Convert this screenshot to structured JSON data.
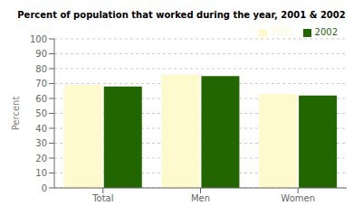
{
  "chart_data": {
    "type": "bar",
    "title": "Percent of population that worked during the year, 2001 & 2002",
    "categories": [
      "Total",
      "Men",
      "Women"
    ],
    "series": [
      {
        "name": "2001",
        "color": "#FFFACD",
        "values": [
          69,
          76,
          63
        ]
      },
      {
        "name": "2002",
        "color": "#226600",
        "values": [
          68,
          75,
          62
        ]
      }
    ],
    "ylabel": "Percent",
    "ylim": [
      0,
      100
    ],
    "yticks": [
      0,
      10,
      20,
      30,
      40,
      50,
      60,
      70,
      80,
      90,
      100
    ],
    "grid": true,
    "legend": "upper right"
  }
}
